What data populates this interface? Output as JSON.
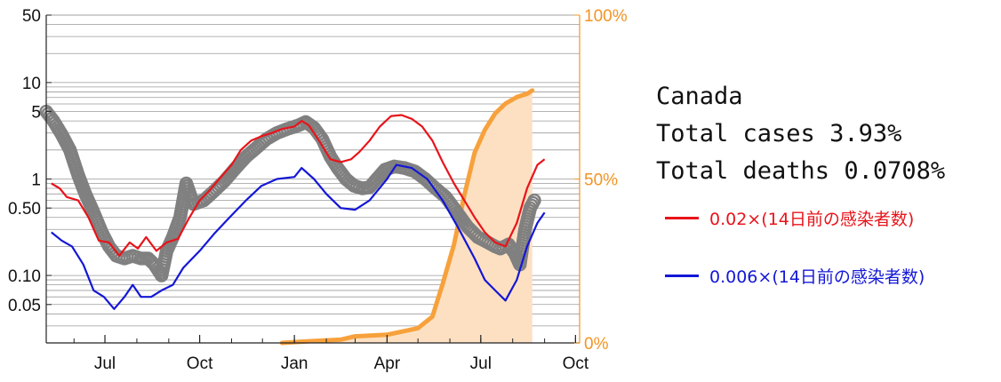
{
  "info": {
    "country": "Canada",
    "total_cases": "Total cases 3.93%",
    "total_deaths": "Total deaths 0.0708%"
  },
  "legend": [
    {
      "label": "0.02×(14日前の感染者数)",
      "color": "#e8141b"
    },
    {
      "label": "0.006×(14日前の感染者数)",
      "color": "#1417d6"
    }
  ],
  "colors": {
    "red": "#e8141b",
    "blue": "#1417d6",
    "gray": "#808080",
    "orange": "#f7a13c",
    "orange_fill": "#fde0c2",
    "right_axis_text": "#f29424",
    "grid": "#9a9a9a"
  },
  "chart_data": {
    "type": "line",
    "x_axis": {
      "type": "date",
      "range": [
        "2020-05-05",
        "2021-10-05"
      ],
      "ticks": [
        "Jul",
        "Oct",
        "Jan",
        "Apr",
        "Jul",
        "Oct"
      ],
      "tick_dates": [
        "2020-07-01",
        "2020-10-01",
        "2021-01-01",
        "2021-04-01",
        "2021-07-01",
        "2021-10-01"
      ]
    },
    "y_left": {
      "scale": "log",
      "range": [
        0.02,
        50
      ],
      "tick_labels": [
        "50",
        "10",
        "5",
        "1",
        "0.50",
        "0.10",
        "0.05"
      ],
      "tick_values": [
        50,
        10,
        5,
        1,
        0.5,
        0.1,
        0.05
      ]
    },
    "y_right": {
      "scale": "linear",
      "range": [
        0,
        100
      ],
      "tick_labels": [
        "100%",
        "50%",
        "0%"
      ],
      "tick_values": [
        100,
        50,
        0
      ]
    },
    "grid": true,
    "series": [
      {
        "name": "0.02×(14日前の感染者数)",
        "color": "#e8141b",
        "axis": "left",
        "points": [
          [
            "2020-05-10",
            0.9
          ],
          [
            "2020-05-18",
            0.8
          ],
          [
            "2020-05-25",
            0.65
          ],
          [
            "2020-06-05",
            0.6
          ],
          [
            "2020-06-15",
            0.4
          ],
          [
            "2020-06-25",
            0.23
          ],
          [
            "2020-07-05",
            0.22
          ],
          [
            "2020-07-15",
            0.16
          ],
          [
            "2020-07-25",
            0.22
          ],
          [
            "2020-08-02",
            0.19
          ],
          [
            "2020-08-10",
            0.25
          ],
          [
            "2020-08-20",
            0.18
          ],
          [
            "2020-08-30",
            0.22
          ],
          [
            "2020-09-10",
            0.24
          ],
          [
            "2020-09-20",
            0.38
          ],
          [
            "2020-10-01",
            0.6
          ],
          [
            "2020-10-10",
            0.75
          ],
          [
            "2020-10-20",
            1.0
          ],
          [
            "2020-11-01",
            1.4
          ],
          [
            "2020-11-10",
            2.0
          ],
          [
            "2020-11-20",
            2.5
          ],
          [
            "2020-12-01",
            2.8
          ],
          [
            "2020-12-10",
            3.0
          ],
          [
            "2020-12-20",
            3.3
          ],
          [
            "2021-01-01",
            3.5
          ],
          [
            "2021-01-08",
            4.0
          ],
          [
            "2021-01-15",
            3.6
          ],
          [
            "2021-01-25",
            2.5
          ],
          [
            "2021-02-05",
            1.6
          ],
          [
            "2021-02-15",
            1.5
          ],
          [
            "2021-02-25",
            1.6
          ],
          [
            "2021-03-05",
            1.9
          ],
          [
            "2021-03-15",
            2.5
          ],
          [
            "2021-03-25",
            3.5
          ],
          [
            "2021-04-05",
            4.5
          ],
          [
            "2021-04-15",
            4.6
          ],
          [
            "2021-04-25",
            4.2
          ],
          [
            "2021-05-05",
            3.5
          ],
          [
            "2021-05-15",
            2.5
          ],
          [
            "2021-05-25",
            1.5
          ],
          [
            "2021-06-05",
            0.9
          ],
          [
            "2021-06-15",
            0.6
          ],
          [
            "2021-06-25",
            0.4
          ],
          [
            "2021-07-05",
            0.28
          ],
          [
            "2021-07-15",
            0.22
          ],
          [
            "2021-07-25",
            0.2
          ],
          [
            "2021-08-05",
            0.35
          ],
          [
            "2021-08-15",
            0.8
          ],
          [
            "2021-08-25",
            1.4
          ],
          [
            "2021-09-01",
            1.6
          ]
        ]
      },
      {
        "name": "0.006×(14日前の感染者数)",
        "color": "#1417d6",
        "axis": "left",
        "points": [
          [
            "2020-05-10",
            0.28
          ],
          [
            "2020-05-20",
            0.23
          ],
          [
            "2020-05-30",
            0.2
          ],
          [
            "2020-06-10",
            0.13
          ],
          [
            "2020-06-20",
            0.07
          ],
          [
            "2020-06-30",
            0.06
          ],
          [
            "2020-07-10",
            0.045
          ],
          [
            "2020-07-20",
            0.06
          ],
          [
            "2020-07-28",
            0.08
          ],
          [
            "2020-08-05",
            0.06
          ],
          [
            "2020-08-15",
            0.06
          ],
          [
            "2020-08-25",
            0.07
          ],
          [
            "2020-09-05",
            0.08
          ],
          [
            "2020-09-15",
            0.12
          ],
          [
            "2020-10-01",
            0.18
          ],
          [
            "2020-10-15",
            0.27
          ],
          [
            "2020-10-30",
            0.4
          ],
          [
            "2020-11-15",
            0.6
          ],
          [
            "2020-11-30",
            0.85
          ],
          [
            "2020-12-15",
            1.0
          ],
          [
            "2021-01-01",
            1.05
          ],
          [
            "2021-01-08",
            1.3
          ],
          [
            "2021-01-20",
            1.0
          ],
          [
            "2021-02-01",
            0.7
          ],
          [
            "2021-02-15",
            0.5
          ],
          [
            "2021-03-01",
            0.48
          ],
          [
            "2021-03-15",
            0.6
          ],
          [
            "2021-04-01",
            1.0
          ],
          [
            "2021-04-10",
            1.4
          ],
          [
            "2021-04-25",
            1.3
          ],
          [
            "2021-05-10",
            1.0
          ],
          [
            "2021-05-25",
            0.6
          ],
          [
            "2021-06-10",
            0.3
          ],
          [
            "2021-06-25",
            0.15
          ],
          [
            "2021-07-05",
            0.09
          ],
          [
            "2021-07-15",
            0.07
          ],
          [
            "2021-07-25",
            0.055
          ],
          [
            "2021-08-05",
            0.09
          ],
          [
            "2021-08-15",
            0.2
          ],
          [
            "2021-08-25",
            0.35
          ],
          [
            "2021-09-01",
            0.45
          ]
        ]
      },
      {
        "name": "",
        "kind": "scatter",
        "color": "#808080",
        "axis": "left",
        "points": [
          [
            "2020-05-05",
            5.0
          ],
          [
            "2020-05-12",
            4.0
          ],
          [
            "2020-05-20",
            2.9
          ],
          [
            "2020-05-28",
            2.0
          ],
          [
            "2020-06-05",
            1.1
          ],
          [
            "2020-06-12",
            0.7
          ],
          [
            "2020-06-20",
            0.45
          ],
          [
            "2020-06-28",
            0.28
          ],
          [
            "2020-07-05",
            0.2
          ],
          [
            "2020-07-12",
            0.16
          ],
          [
            "2020-07-20",
            0.15
          ],
          [
            "2020-07-28",
            0.16
          ],
          [
            "2020-08-05",
            0.15
          ],
          [
            "2020-08-12",
            0.15
          ],
          [
            "2020-08-18",
            0.13
          ],
          [
            "2020-08-25",
            0.1
          ],
          [
            "2020-08-30",
            0.18
          ],
          [
            "2020-09-05",
            0.25
          ],
          [
            "2020-09-12",
            0.4
          ],
          [
            "2020-09-18",
            0.9
          ],
          [
            "2020-09-25",
            0.55
          ],
          [
            "2020-10-05",
            0.6
          ],
          [
            "2020-10-15",
            0.75
          ],
          [
            "2020-10-25",
            0.95
          ],
          [
            "2020-11-05",
            1.3
          ],
          [
            "2020-11-15",
            1.7
          ],
          [
            "2020-11-25",
            2.1
          ],
          [
            "2020-12-05",
            2.6
          ],
          [
            "2020-12-15",
            3.0
          ],
          [
            "2020-12-25",
            3.3
          ],
          [
            "2021-01-05",
            3.6
          ],
          [
            "2021-01-12",
            3.9
          ],
          [
            "2021-01-20",
            3.4
          ],
          [
            "2021-01-28",
            2.6
          ],
          [
            "2021-02-05",
            1.7
          ],
          [
            "2021-02-12",
            1.3
          ],
          [
            "2021-02-20",
            1.0
          ],
          [
            "2021-02-28",
            0.85
          ],
          [
            "2021-03-08",
            0.8
          ],
          [
            "2021-03-15",
            0.82
          ],
          [
            "2021-03-22",
            1.0
          ],
          [
            "2021-03-30",
            1.25
          ],
          [
            "2021-04-08",
            1.35
          ],
          [
            "2021-04-18",
            1.3
          ],
          [
            "2021-04-28",
            1.2
          ],
          [
            "2021-05-08",
            1.0
          ],
          [
            "2021-05-18",
            0.8
          ],
          [
            "2021-05-28",
            0.65
          ],
          [
            "2021-06-08",
            0.45
          ],
          [
            "2021-06-18",
            0.32
          ],
          [
            "2021-06-28",
            0.25
          ],
          [
            "2021-07-08",
            0.22
          ],
          [
            "2021-07-15",
            0.2
          ],
          [
            "2021-07-20",
            0.19
          ],
          [
            "2021-07-28",
            0.21
          ],
          [
            "2021-08-03",
            0.17
          ],
          [
            "2021-08-08",
            0.13
          ],
          [
            "2021-08-13",
            0.3
          ],
          [
            "2021-08-18",
            0.5
          ],
          [
            "2021-08-22",
            0.6
          ]
        ]
      },
      {
        "name": "",
        "kind": "area",
        "color": "#f7a13c",
        "axis": "right",
        "points": [
          [
            "2020-12-20",
            0
          ],
          [
            "2021-01-15",
            0.5
          ],
          [
            "2021-02-15",
            1
          ],
          [
            "2021-03-01",
            2
          ],
          [
            "2021-04-01",
            2.5
          ],
          [
            "2021-05-01",
            4.5
          ],
          [
            "2021-05-15",
            8
          ],
          [
            "2021-05-25",
            18
          ],
          [
            "2021-06-05",
            30
          ],
          [
            "2021-06-15",
            45
          ],
          [
            "2021-06-25",
            58
          ],
          [
            "2021-07-05",
            65
          ],
          [
            "2021-07-15",
            70
          ],
          [
            "2021-07-25",
            73
          ],
          [
            "2021-08-05",
            75
          ],
          [
            "2021-08-15",
            76
          ],
          [
            "2021-08-20",
            77
          ]
        ]
      }
    ]
  }
}
